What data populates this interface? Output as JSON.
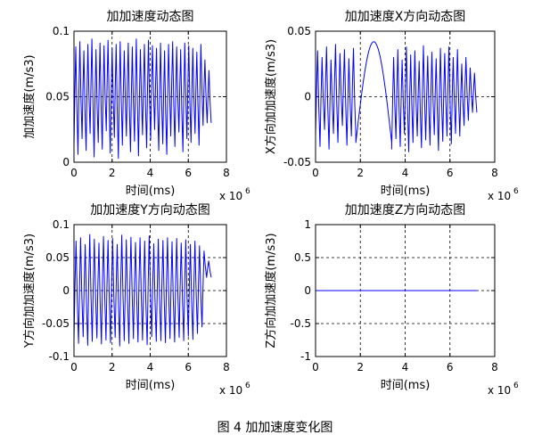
{
  "figure": {
    "caption": "图 4  加加速度变化图",
    "series_color": "#0000ff"
  },
  "chart_data": [
    {
      "type": "line",
      "title": "加加速度动态图",
      "xlabel": "时间(ms)",
      "ylabel": "加加速度(m/s3)",
      "x_exponent": "x 10",
      "x_exponent_sup": "6",
      "xlim": [
        0,
        8
      ],
      "ylim": [
        0,
        0.1
      ],
      "xticks": [
        "0",
        "2",
        "4",
        "6",
        "8"
      ],
      "yticks": [
        "0",
        "0.05",
        "0.1"
      ],
      "grid": true,
      "x_data_range": [
        0,
        7.2
      ],
      "series": [
        {
          "signal": "oscillating",
          "cycles": 34,
          "peaks": [
            0.088,
            0.092,
            0.085,
            0.09,
            0.094,
            0.086,
            0.091,
            0.089,
            0.093,
            0.087,
            0.09,
            0.092,
            0.085,
            0.091,
            0.088,
            0.094,
            0.086,
            0.09,
            0.093,
            0.089,
            0.087,
            0.091,
            0.085,
            0.09,
            0.092,
            0.088,
            0.086,
            0.091,
            0.089,
            0.087,
            0.084,
            0.09,
            0.078,
            0.07
          ],
          "troughs": [
            0.012,
            0.006,
            0.018,
            0.009,
            0.022,
            0.004,
            0.015,
            0.01,
            0.024,
            0.007,
            0.019,
            0.003,
            0.013,
            0.02,
            0.008,
            0.016,
            0.005,
            0.021,
            0.011,
            0.017,
            0.025,
            0.009,
            0.014,
            0.006,
            0.02,
            0.012,
            0.023,
            0.008,
            0.018,
            0.015,
            0.022,
            0.013,
            0.028,
            0.03
          ]
        }
      ]
    },
    {
      "type": "line",
      "title": "加加速度X方向动态图",
      "xlabel": "时间(ms)",
      "ylabel": "X方向加加速度(m/s3)",
      "x_exponent": "x 10",
      "x_exponent_sup": "6",
      "xlim": [
        0,
        8
      ],
      "ylim": [
        -0.05,
        0.05
      ],
      "xticks": [
        "0",
        "2",
        "4",
        "6",
        "8"
      ],
      "yticks": [
        "-0.05",
        "0",
        "0.05"
      ],
      "grid": true,
      "x_data_range": [
        0,
        7.2
      ],
      "series": [
        {
          "signal": "piecewise",
          "segments": [
            {
              "x": [
                0,
                1.8
              ],
              "kind": "oscillating",
              "cycles": 9,
              "peaks": [
                0.035,
                0.03,
                0.038,
                0.028,
                0.04,
                0.033,
                0.036,
                0.029,
                0.037
              ],
              "troughs": [
                -0.03,
                -0.038,
                -0.025,
                -0.04,
                -0.028,
                -0.035,
                -0.022,
                -0.037,
                -0.03
              ]
            },
            {
              "x": [
                1.8,
                3.4
              ],
              "kind": "arch",
              "peak": 0.042,
              "ends": -0.035
            },
            {
              "x": [
                3.4,
                7.2
              ],
              "kind": "oscillating",
              "cycles": 20,
              "peaks": [
                0.03,
                0.036,
                0.028,
                0.038,
                0.032,
                0.035,
                0.027,
                0.039,
                0.031,
                0.034,
                0.029,
                0.037,
                0.033,
                0.038,
                0.03,
                0.036,
                0.025,
                0.03,
                0.022,
                0.018
              ],
              "troughs": [
                -0.04,
                -0.032,
                -0.038,
                -0.028,
                -0.042,
                -0.035,
                -0.03,
                -0.039,
                -0.033,
                -0.037,
                -0.029,
                -0.041,
                -0.034,
                -0.03,
                -0.036,
                -0.028,
                -0.03,
                -0.022,
                -0.018,
                -0.012
              ]
            }
          ]
        }
      ]
    },
    {
      "type": "line",
      "title": "加加速度Y方向动态图",
      "xlabel": "时间(ms)",
      "ylabel": "Y方向加加速度(m/s3)",
      "x_exponent": "x 10",
      "x_exponent_sup": "6",
      "xlim": [
        0,
        8
      ],
      "ylim": [
        -0.1,
        0.1
      ],
      "xticks": [
        "0",
        "2",
        "4",
        "6",
        "8"
      ],
      "yticks": [
        "-0.1",
        "-0.05",
        "0",
        "0.05",
        "0.1"
      ],
      "grid": true,
      "x_data_range": [
        0,
        7.2
      ],
      "series": [
        {
          "signal": "oscillating",
          "cycles": 30,
          "peaks": [
            0.075,
            0.08,
            0.07,
            0.085,
            0.078,
            0.072,
            0.082,
            0.076,
            0.079,
            0.07,
            0.084,
            0.077,
            0.081,
            0.073,
            0.08,
            0.075,
            0.083,
            0.071,
            0.078,
            0.076,
            0.08,
            0.074,
            0.079,
            0.072,
            0.077,
            0.07,
            0.075,
            0.068,
            0.06,
            0.045
          ],
          "troughs": [
            -0.075,
            -0.08,
            -0.07,
            -0.083,
            -0.077,
            -0.072,
            -0.081,
            -0.075,
            -0.079,
            -0.071,
            -0.084,
            -0.076,
            -0.08,
            -0.073,
            -0.078,
            -0.075,
            -0.082,
            -0.07,
            -0.077,
            -0.076,
            -0.079,
            -0.073,
            -0.078,
            -0.071,
            -0.076,
            -0.069,
            -0.074,
            -0.065,
            -0.055,
            0.02
          ]
        }
      ]
    },
    {
      "type": "line",
      "title": "加加速度Z方向动态图",
      "xlabel": "时间(ms)",
      "ylabel": "Z方向加加速度(m/s3)",
      "x_exponent": "x 10",
      "x_exponent_sup": "6",
      "xlim": [
        0,
        8
      ],
      "ylim": [
        -1,
        1
      ],
      "xticks": [
        "0",
        "2",
        "4",
        "6",
        "8"
      ],
      "yticks": [
        "-1",
        "-0.5",
        "0",
        "0.5",
        "1"
      ],
      "grid": true,
      "x_data_range": [
        0,
        7.2
      ],
      "series": [
        {
          "signal": "constant",
          "value": 0
        }
      ]
    }
  ]
}
